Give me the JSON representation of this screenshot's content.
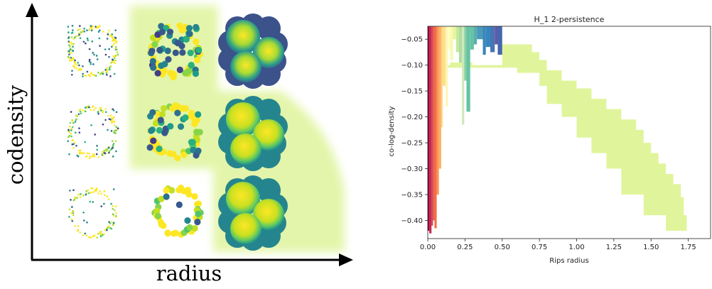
{
  "left_figure": {
    "x_axis_label": "radius",
    "y_axis_label": "codensity"
  },
  "chart_data": {
    "type": "area",
    "title": "H_1 2-persistence",
    "xlabel": "Rips radius",
    "ylabel": "co-log-density",
    "xlim": [
      0,
      1.9
    ],
    "ylim": [
      -0.435,
      -0.025
    ],
    "x_ticks": [
      0.0,
      0.25,
      0.5,
      0.75,
      1.0,
      1.25,
      1.5,
      1.75
    ],
    "x_tick_labels": [
      "0.00",
      "0.25",
      "0.50",
      "0.75",
      "1.00",
      "1.25",
      "1.50",
      "1.75"
    ],
    "y_ticks": [
      -0.05,
      -0.1,
      -0.15,
      -0.2,
      -0.25,
      -0.3,
      -0.35,
      -0.4
    ],
    "y_tick_labels": [
      "−0.05",
      "−0.10",
      "−0.15",
      "−0.20",
      "−0.25",
      "−0.30",
      "−0.35",
      "−0.40"
    ],
    "grid": false,
    "legend": "none",
    "large_region": {
      "color": "#e0f59b",
      "y_top": -0.025,
      "y_bottom": -0.42,
      "boundary": [
        [
          0.5,
          -0.06
        ],
        [
          0.7,
          -0.06
        ],
        [
          0.7,
          -0.075
        ],
        [
          0.75,
          -0.075
        ],
        [
          0.75,
          -0.09
        ],
        [
          0.8,
          -0.09
        ],
        [
          0.8,
          -0.11
        ],
        [
          0.9,
          -0.11
        ],
        [
          0.9,
          -0.13
        ],
        [
          1.0,
          -0.13
        ],
        [
          1.0,
          -0.145
        ],
        [
          1.1,
          -0.145
        ],
        [
          1.1,
          -0.165
        ],
        [
          1.2,
          -0.165
        ],
        [
          1.2,
          -0.185
        ],
        [
          1.3,
          -0.185
        ],
        [
          1.3,
          -0.205
        ],
        [
          1.4,
          -0.205
        ],
        [
          1.4,
          -0.225
        ],
        [
          1.45,
          -0.225
        ],
        [
          1.45,
          -0.25
        ],
        [
          1.5,
          -0.25
        ],
        [
          1.5,
          -0.27
        ],
        [
          1.55,
          -0.27
        ],
        [
          1.55,
          -0.29
        ],
        [
          1.6,
          -0.29
        ],
        [
          1.6,
          -0.31
        ],
        [
          1.65,
          -0.31
        ],
        [
          1.65,
          -0.33
        ],
        [
          1.7,
          -0.33
        ],
        [
          1.7,
          -0.355
        ],
        [
          1.72,
          -0.355
        ],
        [
          1.72,
          -0.39
        ],
        [
          1.74,
          -0.39
        ],
        [
          1.74,
          -0.42
        ]
      ],
      "left_edge": [
        [
          0.1,
          -0.1
        ],
        [
          0.15,
          -0.1
        ],
        [
          0.15,
          -0.095
        ],
        [
          0.3,
          -0.095
        ],
        [
          0.3,
          -0.1
        ],
        [
          0.5,
          -0.1
        ],
        [
          0.5,
          -0.06
        ]
      ]
    },
    "bars": [
      {
        "x0": 0.0,
        "x1": 0.01,
        "y_bottom": -0.42,
        "color": "#9e0142"
      },
      {
        "x0": 0.01,
        "x1": 0.025,
        "y_bottom": -0.425,
        "color": "#c2294a"
      },
      {
        "x0": 0.025,
        "x1": 0.035,
        "y_bottom": -0.41,
        "color": "#d53e4f"
      },
      {
        "x0": 0.035,
        "x1": 0.045,
        "y_bottom": -0.4,
        "color": "#e55c4a"
      },
      {
        "x0": 0.045,
        "x1": 0.06,
        "y_bottom": -0.415,
        "color": "#f46d43"
      },
      {
        "x0": 0.06,
        "x1": 0.075,
        "y_bottom": -0.35,
        "color": "#fa9656"
      },
      {
        "x0": 0.075,
        "x1": 0.09,
        "y_bottom": -0.3,
        "color": "#fdae61"
      },
      {
        "x0": 0.09,
        "x1": 0.1,
        "y_bottom": -0.22,
        "color": "#fdd383"
      },
      {
        "x0": 0.1,
        "x1": 0.12,
        "y_bottom": -0.14,
        "color": "#fee08b"
      },
      {
        "x0": 0.12,
        "x1": 0.135,
        "y_bottom": -0.18,
        "color": "#fff5b3"
      },
      {
        "x0": 0.135,
        "x1": 0.15,
        "y_bottom": -0.07,
        "color": "#ffffbf"
      },
      {
        "x0": 0.15,
        "x1": 0.17,
        "y_bottom": -0.09,
        "color": "#f4fab0"
      },
      {
        "x0": 0.17,
        "x1": 0.19,
        "y_bottom": -0.05,
        "color": "#e6f598"
      },
      {
        "x0": 0.19,
        "x1": 0.21,
        "y_bottom": -0.075,
        "color": "#c7e89e"
      },
      {
        "x0": 0.21,
        "x1": 0.23,
        "y_bottom": -0.095,
        "color": "#abdda4"
      },
      {
        "x0": 0.23,
        "x1": 0.245,
        "y_bottom": -0.215,
        "color": "#cfe8b8"
      },
      {
        "x0": 0.245,
        "x1": 0.26,
        "y_bottom": -0.13,
        "color": "#88cfa4"
      },
      {
        "x0": 0.26,
        "x1": 0.285,
        "y_bottom": -0.19,
        "color": "#66c2a5"
      },
      {
        "x0": 0.285,
        "x1": 0.31,
        "y_bottom": -0.07,
        "color": "#66c2a5"
      },
      {
        "x0": 0.31,
        "x1": 0.33,
        "y_bottom": -0.06,
        "color": "#5aaeb0"
      },
      {
        "x0": 0.33,
        "x1": 0.37,
        "y_bottom": -0.05,
        "color": "#4a9bb8"
      },
      {
        "x0": 0.37,
        "x1": 0.39,
        "y_bottom": -0.08,
        "color": "#3d86bc"
      },
      {
        "x0": 0.39,
        "x1": 0.42,
        "y_bottom": -0.065,
        "color": "#3288bd"
      },
      {
        "x0": 0.42,
        "x1": 0.45,
        "y_bottom": -0.075,
        "color": "#4b73b4"
      },
      {
        "x0": 0.45,
        "x1": 0.47,
        "y_bottom": -0.06,
        "color": "#5e5aa8"
      },
      {
        "x0": 0.47,
        "x1": 0.5,
        "y_bottom": -0.08,
        "color": "#4566ae"
      }
    ]
  }
}
